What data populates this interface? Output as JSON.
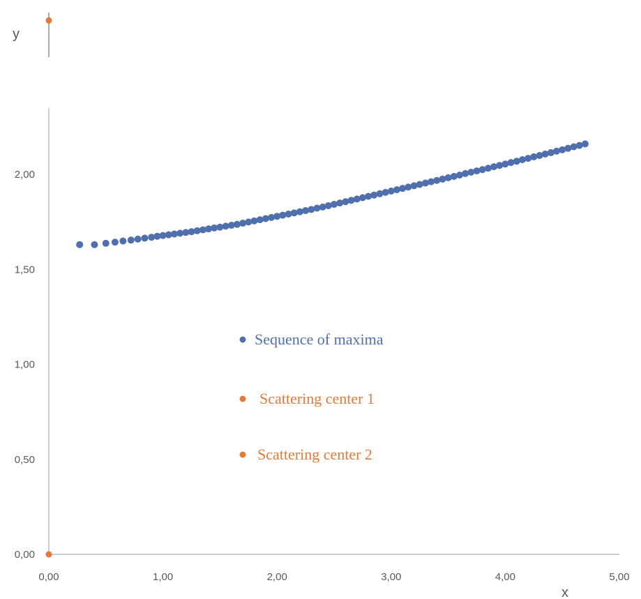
{
  "chart_data": {
    "type": "scatter",
    "xlabel": "x",
    "ylabel": "y",
    "xlim": [
      0,
      5
    ],
    "ylim": [
      0,
      2.9
    ],
    "x_ticks": [
      "0,00",
      "1,00",
      "2,00",
      "3,00",
      "4,00",
      "5,00"
    ],
    "y_ticks": [
      "0,00",
      "0,50",
      "1,00",
      "1,50",
      "2,00"
    ],
    "x_tick_values": [
      0,
      1,
      2,
      3,
      4,
      5
    ],
    "y_tick_values": [
      0,
      0.5,
      1,
      1.5,
      2
    ],
    "grid": false,
    "legend_placement": "center",
    "series": [
      {
        "name": "Sequence of maxima",
        "color": "#4f6fad",
        "points": [
          [
            0.27,
            1.63
          ],
          [
            0.4,
            1.63
          ],
          [
            0.5,
            1.637
          ],
          [
            0.58,
            1.643
          ],
          [
            0.65,
            1.649
          ],
          [
            0.72,
            1.654
          ],
          [
            0.78,
            1.659
          ],
          [
            0.84,
            1.664
          ],
          [
            0.9,
            1.669
          ],
          [
            0.95,
            1.674
          ],
          [
            1.0,
            1.678
          ],
          [
            1.05,
            1.682
          ],
          [
            1.1,
            1.686
          ],
          [
            1.15,
            1.69
          ],
          [
            1.2,
            1.694
          ],
          [
            1.25,
            1.698
          ],
          [
            1.3,
            1.703
          ],
          [
            1.35,
            1.708
          ],
          [
            1.4,
            1.713
          ],
          [
            1.45,
            1.718
          ],
          [
            1.5,
            1.722
          ],
          [
            1.55,
            1.727
          ],
          [
            1.6,
            1.732
          ],
          [
            1.65,
            1.737
          ],
          [
            1.7,
            1.743
          ],
          [
            1.75,
            1.749
          ],
          [
            1.8,
            1.755
          ],
          [
            1.85,
            1.761
          ],
          [
            1.9,
            1.767
          ],
          [
            1.95,
            1.773
          ],
          [
            2.0,
            1.779
          ],
          [
            2.05,
            1.785
          ],
          [
            2.1,
            1.791
          ],
          [
            2.15,
            1.797
          ],
          [
            2.2,
            1.803
          ],
          [
            2.25,
            1.809
          ],
          [
            2.3,
            1.815
          ],
          [
            2.35,
            1.822
          ],
          [
            2.4,
            1.828
          ],
          [
            2.45,
            1.835
          ],
          [
            2.5,
            1.842
          ],
          [
            2.55,
            1.849
          ],
          [
            2.6,
            1.856
          ],
          [
            2.65,
            1.863
          ],
          [
            2.7,
            1.87
          ],
          [
            2.75,
            1.877
          ],
          [
            2.8,
            1.884
          ],
          [
            2.85,
            1.891
          ],
          [
            2.9,
            1.898
          ],
          [
            2.95,
            1.905
          ],
          [
            3.0,
            1.912
          ],
          [
            3.05,
            1.919
          ],
          [
            3.1,
            1.926
          ],
          [
            3.15,
            1.933
          ],
          [
            3.2,
            1.94
          ],
          [
            3.25,
            1.947
          ],
          [
            3.3,
            1.954
          ],
          [
            3.35,
            1.961
          ],
          [
            3.4,
            1.968
          ],
          [
            3.45,
            1.975
          ],
          [
            3.5,
            1.982
          ],
          [
            3.55,
            1.989
          ],
          [
            3.6,
            1.996
          ],
          [
            3.65,
            2.004
          ],
          [
            3.7,
            2.011
          ],
          [
            3.75,
            2.018
          ],
          [
            3.8,
            2.025
          ],
          [
            3.85,
            2.032
          ],
          [
            3.9,
            2.04
          ],
          [
            3.95,
            2.047
          ],
          [
            4.0,
            2.054
          ],
          [
            4.05,
            2.062
          ],
          [
            4.1,
            2.069
          ],
          [
            4.15,
            2.077
          ],
          [
            4.2,
            2.084
          ],
          [
            4.25,
            2.092
          ],
          [
            4.3,
            2.099
          ],
          [
            4.35,
            2.107
          ],
          [
            4.4,
            2.114
          ],
          [
            4.45,
            2.122
          ],
          [
            4.5,
            2.129
          ],
          [
            4.55,
            2.137
          ],
          [
            4.6,
            2.145
          ],
          [
            4.65,
            2.152
          ],
          [
            4.7,
            2.16
          ]
        ]
      },
      {
        "name": "Scattering center 1",
        "color": "#e07b3c",
        "points": [
          [
            0.0,
            2.81
          ]
        ]
      },
      {
        "name": "Scattering center 2",
        "color": "#e07b3c",
        "points": [
          [
            0.0,
            0.0
          ]
        ]
      }
    ]
  }
}
